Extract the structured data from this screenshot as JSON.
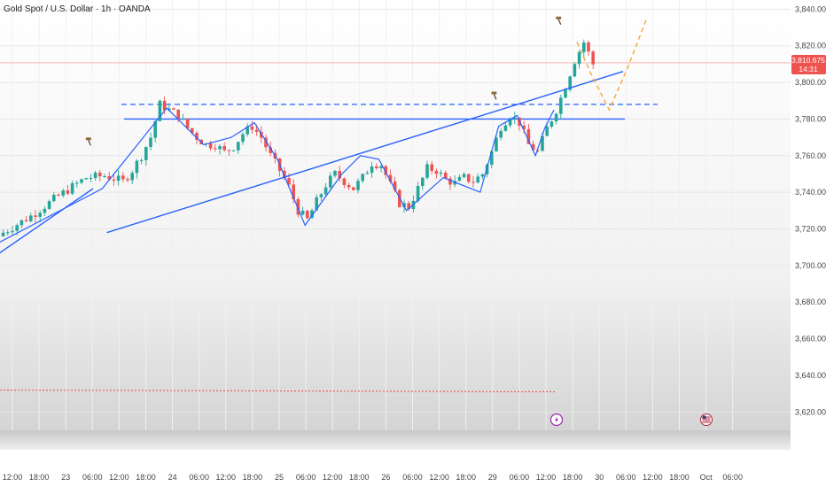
{
  "header": {
    "title": "Gold Spot / U.S. Dollar · 1h · OANDA"
  },
  "price_label": {
    "value": "3,810.675",
    "countdown": "14:31"
  },
  "colors": {
    "up": "#26a69a",
    "down": "#ef5350",
    "pattern_line": "#2962ff",
    "projection": "#f7a531",
    "price_line": "#ef5350",
    "background_top": "#ffffff",
    "background_bottom": "#d6d6d6"
  },
  "icons": [
    "hammer-icon",
    "hammer-icon",
    "lightning-event-icon",
    "us-flag-event-icon"
  ],
  "chart_data": {
    "type": "candlestick",
    "title": "Gold Spot / U.S. Dollar · 1h · OANDA",
    "ylim": [
      3610,
      3845
    ],
    "y_ticks": [
      "3,620.000",
      "3,640.000",
      "3,660.000",
      "3,680.000",
      "3,700.000",
      "3,720.000",
      "3,740.000",
      "3,760.000",
      "3,780.000",
      "3,800.000",
      "3,820.000",
      "3,840.000"
    ],
    "x_ticks": [
      "12:00",
      "18:00",
      "23",
      "06:00",
      "12:00",
      "18:00",
      "24",
      "06:00",
      "12:00",
      "18:00",
      "25",
      "06:00",
      "12:00",
      "18:00",
      "26",
      "06:00",
      "12:00",
      "18:00",
      "29",
      "06:00",
      "12:00",
      "18:00",
      "30",
      "06:00",
      "12:00",
      "18:00",
      "Oct",
      "06:00"
    ],
    "last_price": 3810.675,
    "levels": {
      "resistance_dashed": 3788,
      "support_solid": 3780,
      "lower_dotted": 3632
    },
    "series": [
      {
        "name": "",
        "anchors": [
          [
            0,
            3718
          ],
          [
            6,
            3727
          ],
          [
            12,
            3738
          ],
          [
            18,
            3748
          ],
          [
            22,
            3749
          ],
          [
            26,
            3746
          ],
          [
            28,
            3752
          ],
          [
            30,
            3760
          ],
          [
            32,
            3770
          ],
          [
            34,
            3788
          ],
          [
            36,
            3785
          ],
          [
            38,
            3782
          ],
          [
            40,
            3775
          ],
          [
            42,
            3770
          ],
          [
            44,
            3766
          ],
          [
            46,
            3766
          ],
          [
            48,
            3762
          ],
          [
            50,
            3765
          ],
          [
            52,
            3772
          ],
          [
            54,
            3776
          ],
          [
            56,
            3770
          ],
          [
            58,
            3760
          ],
          [
            60,
            3752
          ],
          [
            62,
            3743
          ],
          [
            64,
            3730
          ],
          [
            66,
            3725
          ],
          [
            68,
            3735
          ],
          [
            70,
            3744
          ],
          [
            72,
            3750
          ],
          [
            74,
            3746
          ],
          [
            76,
            3742
          ],
          [
            78,
            3748
          ],
          [
            80,
            3756
          ],
          [
            82,
            3755
          ],
          [
            84,
            3744
          ],
          [
            86,
            3734
          ],
          [
            88,
            3732
          ],
          [
            90,
            3742
          ],
          [
            92,
            3753
          ],
          [
            94,
            3752
          ],
          [
            96,
            3747
          ],
          [
            98,
            3745
          ],
          [
            100,
            3748
          ],
          [
            102,
            3746
          ],
          [
            104,
            3750
          ],
          [
            106,
            3762
          ],
          [
            108,
            3776
          ],
          [
            110,
            3782
          ],
          [
            112,
            3778
          ],
          [
            114,
            3766
          ],
          [
            116,
            3762
          ],
          [
            118,
            3775
          ],
          [
            120,
            3785
          ],
          [
            122,
            3798
          ],
          [
            124,
            3812
          ],
          [
            126,
            3822
          ],
          [
            128,
            3810
          ]
        ]
      }
    ],
    "annotations": [
      {
        "name": "ascending-support-line",
        "from": [
          23,
          3718
        ],
        "to": [
          135,
          3806
        ]
      },
      {
        "name": "left-trend-line",
        "from": [
          -10,
          3690
        ],
        "to": [
          20,
          3742
        ]
      }
    ]
  }
}
